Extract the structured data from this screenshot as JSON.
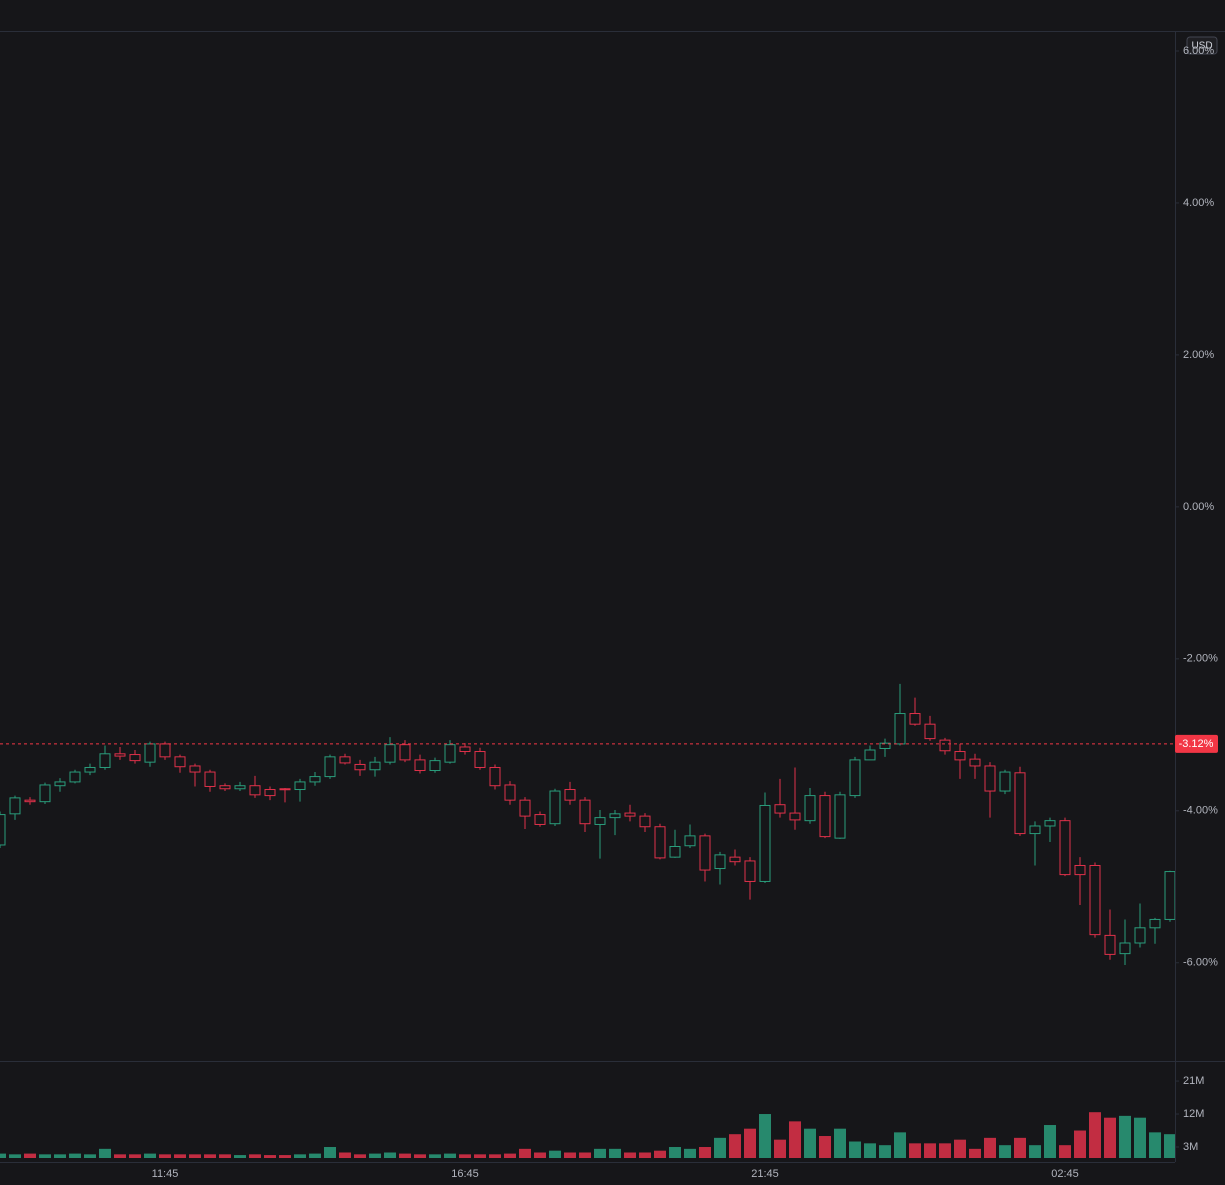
{
  "chart_data": {
    "type": "candlestick",
    "currency": "USD",
    "up_color": "#2a9d7c",
    "down_color": "#e0314a",
    "grid": false,
    "categories": [
      null,
      null,
      null,
      null,
      null,
      null,
      null,
      null,
      null,
      null,
      null,
      "11:45",
      null,
      null,
      null,
      null,
      null,
      null,
      null,
      null,
      null,
      null,
      null,
      null,
      null,
      null,
      null,
      null,
      null,
      null,
      null,
      "16:45",
      null,
      null,
      null,
      null,
      null,
      null,
      null,
      null,
      null,
      null,
      null,
      null,
      null,
      null,
      null,
      null,
      null,
      null,
      null,
      "21:45",
      null,
      null,
      null,
      null,
      null,
      null,
      null,
      null,
      null,
      null,
      null,
      null,
      null,
      null,
      null,
      null,
      null,
      null,
      null,
      "02:45",
      null,
      null,
      null,
      null,
      null,
      null,
      null
    ],
    "open": [
      -4.45,
      -4.04,
      -3.86,
      -3.88,
      -3.67,
      -3.62,
      -3.49,
      -3.43,
      -3.25,
      -3.26,
      -3.36,
      -3.12,
      -3.29,
      -3.41,
      -3.49,
      -3.67,
      -3.71,
      -3.67,
      -3.72,
      -3.71,
      -3.72,
      -3.62,
      -3.55,
      -3.29,
      -3.39,
      -3.46,
      -3.36,
      -3.13,
      -3.33,
      -3.47,
      -3.36,
      -3.16,
      -3.22,
      -3.43,
      -3.66,
      -3.86,
      -4.05,
      -4.17,
      -3.72,
      -3.86,
      -4.18,
      -4.09,
      -4.03,
      -4.07,
      -4.21,
      -4.61,
      -4.46,
      -4.33,
      -4.76,
      -4.61,
      -4.66,
      -4.93,
      -3.92,
      -4.03,
      -4.13,
      -3.8,
      -4.36,
      -3.8,
      -3.33,
      -3.18,
      -3.12,
      -2.72,
      -2.86,
      -3.07,
      -3.22,
      -3.32,
      -3.41,
      -3.74,
      -3.5,
      -4.3,
      -4.2,
      -4.13,
      -4.72,
      -4.72,
      -5.64,
      -5.88,
      -5.74,
      -5.54,
      -5.43
    ],
    "high": [
      -4.01,
      -3.8,
      -3.82,
      -3.63,
      -3.57,
      -3.46,
      -3.38,
      -3.14,
      -3.16,
      -3.2,
      -3.09,
      -3.09,
      -3.26,
      -3.38,
      -3.46,
      -3.64,
      -3.62,
      -3.54,
      -3.68,
      -3.7,
      -3.58,
      -3.49,
      -3.26,
      -3.25,
      -3.33,
      -3.29,
      -3.03,
      -3.07,
      -3.26,
      -3.3,
      -3.07,
      -3.11,
      -3.17,
      -3.39,
      -3.61,
      -3.82,
      -4.01,
      -3.71,
      -3.62,
      -3.82,
      -3.99,
      -3.99,
      -3.92,
      -4.03,
      -4.17,
      -4.25,
      -4.18,
      -4.3,
      -4.54,
      -4.51,
      -4.61,
      -3.76,
      -3.58,
      -3.43,
      -3.7,
      -3.75,
      -3.75,
      -3.29,
      -3.14,
      -3.05,
      -2.33,
      -2.51,
      -2.75,
      -3.04,
      -3.12,
      -3.25,
      -3.36,
      -3.46,
      -3.42,
      -4.14,
      -4.09,
      -4.09,
      -4.61,
      -4.68,
      -5.3,
      -5.43,
      -5.22,
      -5.41,
      -4.79
    ],
    "low": [
      -4.49,
      -4.12,
      -3.92,
      -3.91,
      -3.75,
      -3.64,
      -3.53,
      -3.46,
      -3.33,
      -3.38,
      -3.42,
      -3.33,
      -3.5,
      -3.68,
      -3.75,
      -3.74,
      -3.74,
      -3.83,
      -3.86,
      -3.89,
      -3.88,
      -3.67,
      -3.58,
      -3.39,
      -3.54,
      -3.55,
      -3.39,
      -3.36,
      -3.51,
      -3.5,
      -3.38,
      -3.26,
      -3.46,
      -3.72,
      -3.92,
      -4.24,
      -4.21,
      -4.2,
      -3.92,
      -4.28,
      -4.63,
      -4.32,
      -4.14,
      -4.28,
      -4.64,
      -4.62,
      -4.49,
      -4.93,
      -4.97,
      -4.72,
      -5.17,
      -4.95,
      -4.09,
      -4.25,
      -4.17,
      -4.36,
      -4.37,
      -3.83,
      -3.33,
      -3.29,
      -3.14,
      -2.88,
      -3.08,
      -3.26,
      -3.58,
      -3.58,
      -4.09,
      -3.78,
      -4.33,
      -4.72,
      -4.41,
      -4.86,
      -5.24,
      -5.67,
      -5.96,
      -6.03,
      -5.8,
      -5.75,
      -5.46
    ],
    "close": [
      -4.05,
      -3.83,
      -3.88,
      -3.66,
      -3.62,
      -3.49,
      -3.43,
      -3.25,
      -3.28,
      -3.34,
      -3.12,
      -3.29,
      -3.42,
      -3.49,
      -3.68,
      -3.71,
      -3.67,
      -3.79,
      -3.8,
      -3.72,
      -3.62,
      -3.55,
      -3.29,
      -3.37,
      -3.46,
      -3.36,
      -3.13,
      -3.33,
      -3.47,
      -3.34,
      -3.13,
      -3.22,
      -3.43,
      -3.67,
      -3.86,
      -4.07,
      -4.18,
      -3.74,
      -3.86,
      -4.17,
      -4.09,
      -4.04,
      -4.07,
      -4.21,
      -4.62,
      -4.47,
      -4.33,
      -4.78,
      -4.58,
      -4.67,
      -4.93,
      -3.93,
      -4.03,
      -4.12,
      -3.8,
      -4.34,
      -3.79,
      -3.33,
      -3.2,
      -3.11,
      -2.72,
      -2.86,
      -3.05,
      -3.21,
      -3.33,
      -3.41,
      -3.74,
      -3.49,
      -4.3,
      -4.2,
      -4.13,
      -4.84,
      -4.84,
      -5.63,
      -5.89,
      -5.74,
      -5.54,
      -5.43,
      -4.8
    ],
    "volume": [
      1.2,
      1.0,
      1.2,
      1.0,
      1.0,
      1.2,
      1.0,
      2.5,
      1.0,
      1.0,
      1.2,
      1.0,
      1.0,
      1.0,
      1.0,
      1.0,
      0.8,
      1.0,
      0.8,
      0.8,
      1.0,
      1.2,
      3.0,
      1.5,
      1.0,
      1.2,
      1.5,
      1.2,
      1.0,
      1.0,
      1.2,
      1.0,
      1.0,
      1.0,
      1.2,
      2.5,
      1.5,
      2.0,
      1.5,
      1.5,
      2.5,
      2.5,
      1.5,
      1.5,
      2.0,
      3.0,
      2.5,
      3.0,
      5.5,
      6.5,
      8.0,
      12.0,
      5.0,
      10.0,
      8.0,
      6.0,
      8.0,
      4.5,
      4.0,
      3.5,
      7.0,
      4.0,
      4.0,
      4.0,
      5.0,
      2.5,
      5.5,
      3.5,
      5.5,
      3.5,
      9.0,
      3.5,
      7.5,
      12.5,
      11.0,
      11.5,
      11.0,
      7.0,
      6.5
    ],
    "ylim": [
      -7.28,
      6.25
    ],
    "yticks": [
      {
        "value": -6,
        "label": "-6.00%"
      },
      {
        "value": -4,
        "label": "-4.00%"
      },
      {
        "value": -2,
        "label": "-2.00%"
      },
      {
        "value": 0,
        "label": "0.00%"
      },
      {
        "value": 2,
        "label": "2.00%"
      },
      {
        "value": 4,
        "label": "4.00%"
      },
      {
        "value": 6,
        "label": "6.00%"
      }
    ],
    "volume_lim": [
      0,
      26.2
    ],
    "volume_ticks": [
      {
        "value": 3,
        "label": "3M"
      },
      {
        "value": 12,
        "label": "12M"
      },
      {
        "value": 21,
        "label": "21M"
      }
    ],
    "price_line": {
      "value": -3.12,
      "label": "-3.12%",
      "color": "#f23645"
    }
  }
}
